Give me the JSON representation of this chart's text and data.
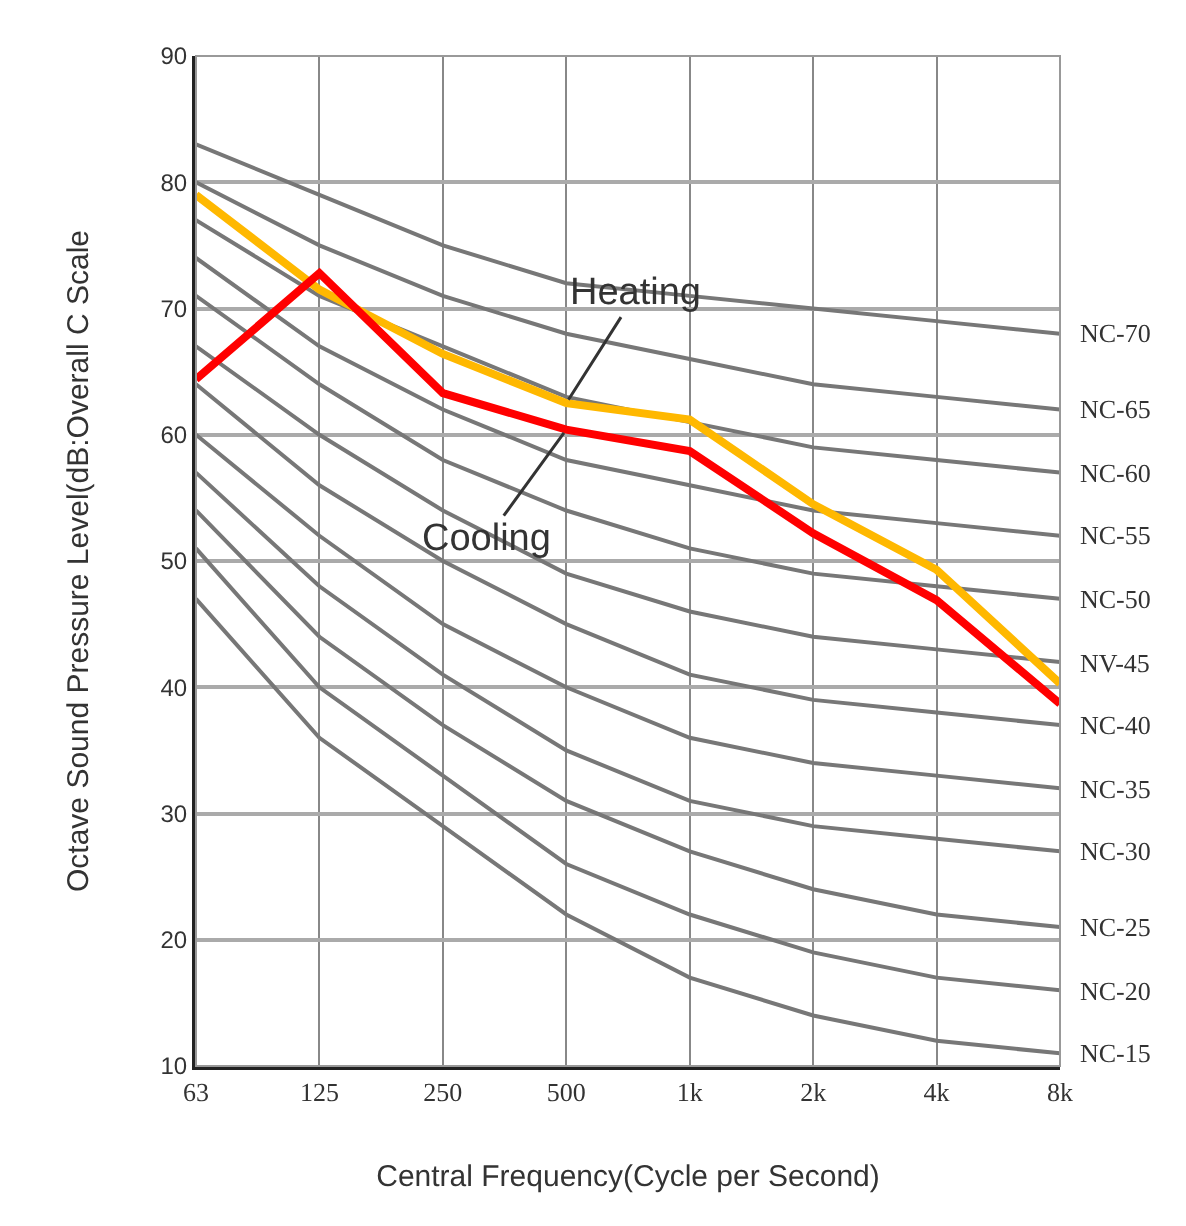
{
  "chart_data": {
    "type": "line",
    "xlabel": "Central Frequency(Cycle per Second)",
    "ylabel": "Octave Sound Pressure Level(dB:Overall C Scale",
    "categories": [
      "63",
      "125",
      "250",
      "500",
      "1k",
      "2k",
      "4k",
      "8k"
    ],
    "ylim": [
      10,
      90
    ],
    "yticks": [
      10,
      20,
      30,
      40,
      50,
      60,
      70,
      80,
      90
    ],
    "grid": true,
    "legend": false,
    "marker": "none",
    "line_style": "solid",
    "series": [
      {
        "name": "NC-70",
        "color": "#777777",
        "values": [
          83,
          79,
          75,
          72,
          71,
          70,
          69,
          68
        ]
      },
      {
        "name": "NC-65",
        "color": "#777777",
        "values": [
          80,
          75,
          71,
          68,
          66,
          64,
          63,
          62
        ]
      },
      {
        "name": "NC-60",
        "color": "#777777",
        "values": [
          77,
          71,
          67,
          63,
          61,
          59,
          58,
          57
        ]
      },
      {
        "name": "NC-55",
        "color": "#777777",
        "values": [
          74,
          67,
          62,
          58,
          56,
          54,
          53,
          52
        ]
      },
      {
        "name": "NC-50",
        "color": "#777777",
        "values": [
          71,
          64,
          58,
          54,
          51,
          49,
          48,
          47
        ]
      },
      {
        "name": "NV-45",
        "color": "#777777",
        "values": [
          67,
          60,
          54,
          49,
          46,
          44,
          43,
          42
        ]
      },
      {
        "name": "NC-40",
        "color": "#777777",
        "values": [
          64,
          56,
          50,
          45,
          41,
          39,
          38,
          37
        ]
      },
      {
        "name": "NC-35",
        "color": "#777777",
        "values": [
          60,
          52,
          45,
          40,
          36,
          34,
          33,
          32
        ]
      },
      {
        "name": "NC-30",
        "color": "#777777",
        "values": [
          57,
          48,
          41,
          35,
          31,
          29,
          28,
          27
        ]
      },
      {
        "name": "NC-25",
        "color": "#777777",
        "values": [
          54,
          44,
          37,
          31,
          27,
          24,
          22,
          21
        ]
      },
      {
        "name": "NC-20",
        "color": "#777777",
        "values": [
          51,
          40,
          33,
          26,
          22,
          19,
          17,
          16
        ]
      },
      {
        "name": "NC-15",
        "color": "#777777",
        "values": [
          47,
          36,
          29,
          22,
          17,
          14,
          12,
          11
        ]
      },
      {
        "color": "#ffb800",
        "values": [
          79,
          71.5,
          66.4,
          62.5,
          61.2,
          54.5,
          49.3,
          40.3
        ]
      },
      {
        "color": "#ff0000",
        "values": [
          64.4,
          72.8,
          63.3,
          60.4,
          58.7,
          52.2,
          46.9,
          38.7
        ]
      }
    ],
    "annotations": [
      {
        "text": "Heating",
        "x": "500",
        "y": 62.5
      },
      {
        "text": "Cooling",
        "x": "500",
        "y": 60.4
      }
    ]
  }
}
